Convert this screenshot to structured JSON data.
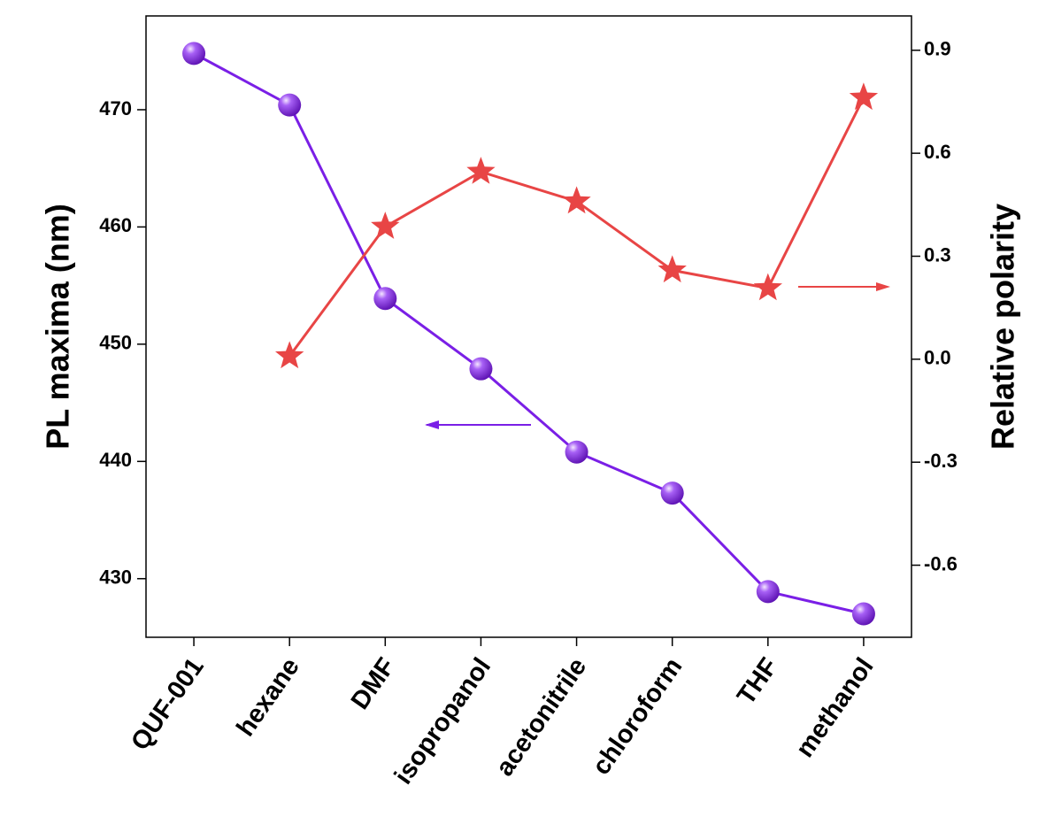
{
  "chart_data": {
    "type": "line",
    "categories": [
      "QUF-001",
      "hexane",
      "DMF",
      "isopropanol",
      "acetonitrile",
      "chloroform",
      "THF",
      "methanol"
    ],
    "ylabel": "PL maxima (nm)",
    "y2label": "Relative polarity",
    "ylim": [
      425,
      478
    ],
    "yticks": [
      430,
      440,
      450,
      460,
      470
    ],
    "y2lim": [
      -0.81,
      1.0
    ],
    "y2ticks": [
      -0.6,
      -0.3,
      {
        "value": 0,
        "label": "0.0"
      },
      0.3,
      0.6,
      0.9
    ],
    "series": [
      {
        "name": "PL maxima",
        "color": "#7a1fe6",
        "marker": "sphere",
        "values": [
          474.8,
          470.4,
          453.9,
          447.9,
          440.8,
          437.3,
          428.9,
          427.0
        ]
      },
      {
        "name": "Relative polarity",
        "color": "#e84545",
        "marker": "star",
        "axis": "y2",
        "values": [
          null,
          0.009,
          0.386,
          0.546,
          0.46,
          0.259,
          0.207,
          0.762
        ]
      }
    ]
  }
}
